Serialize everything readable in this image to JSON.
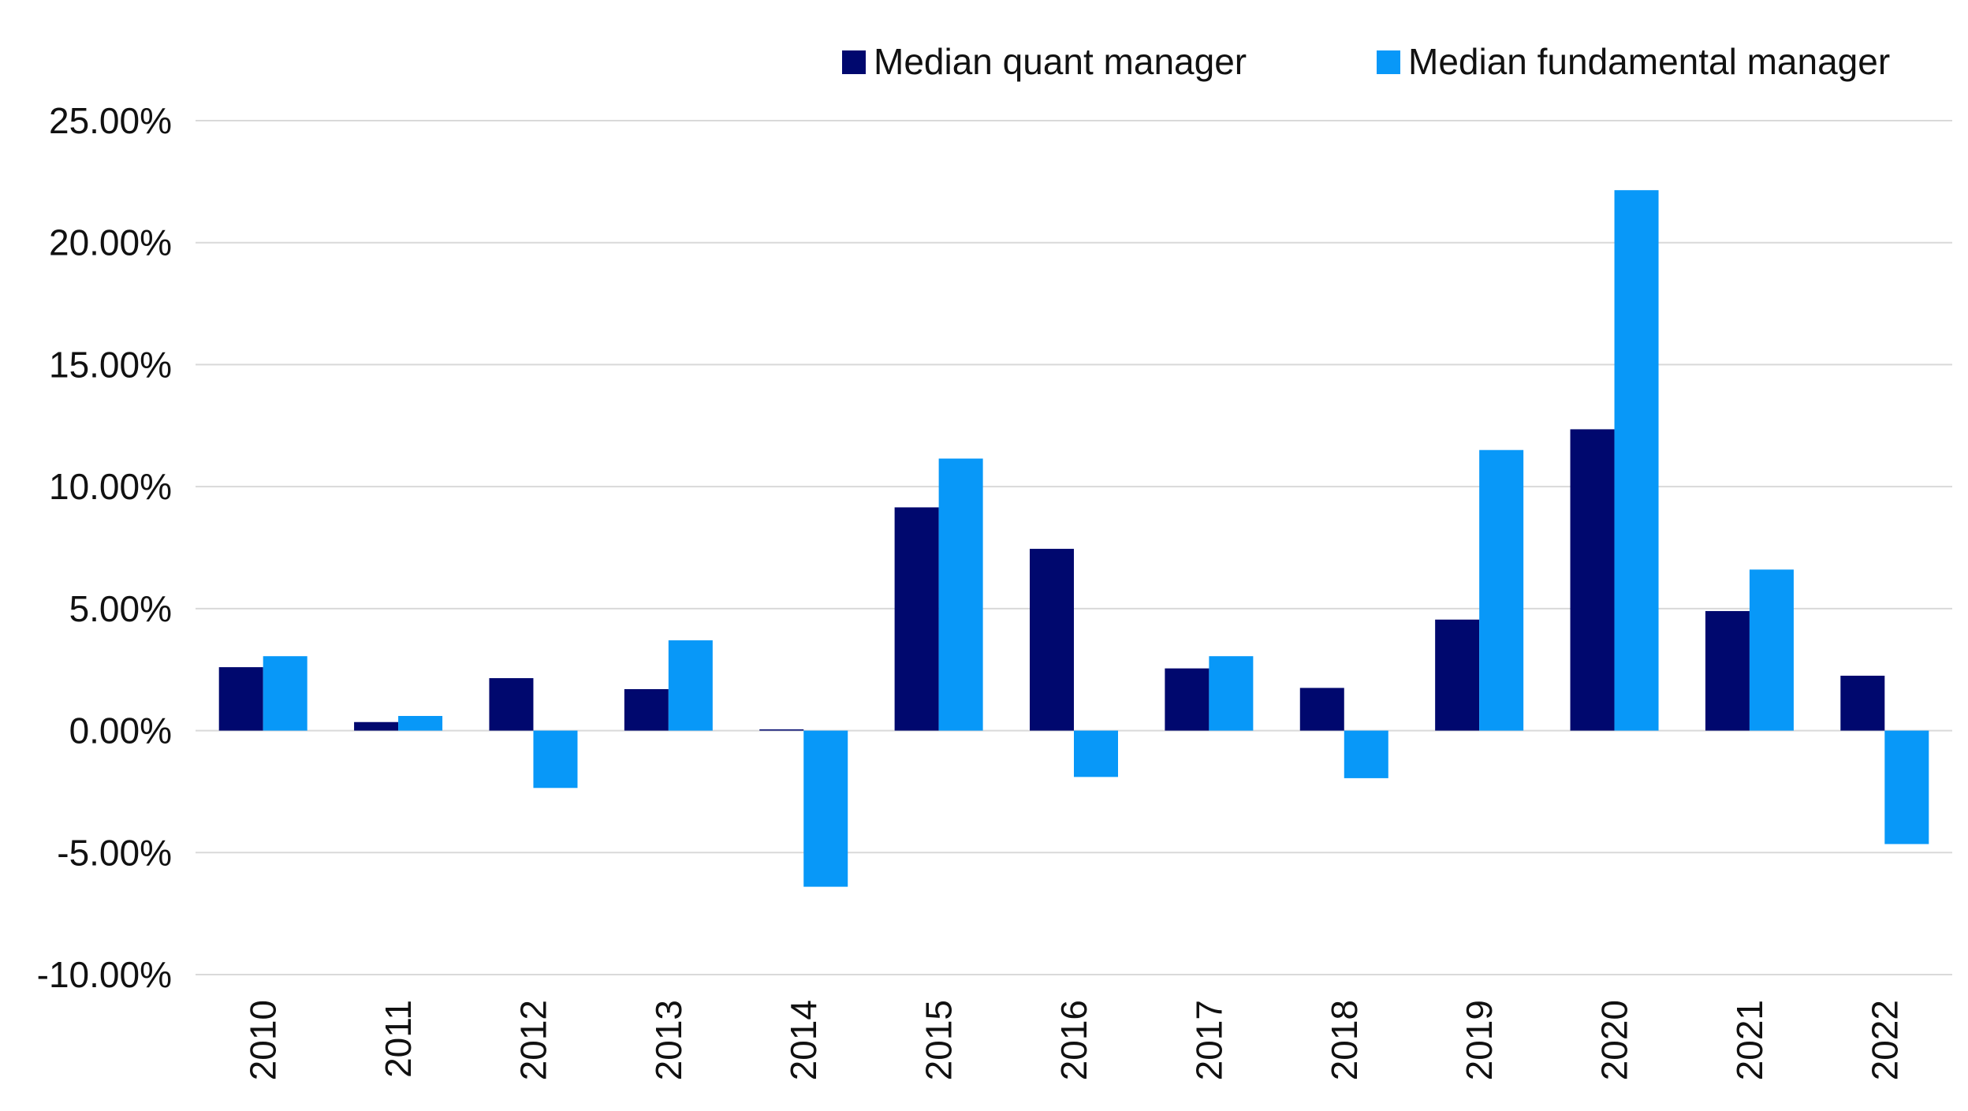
{
  "chart_data": {
    "type": "bar",
    "title": "",
    "xlabel": "",
    "ylabel": "",
    "categories": [
      "2010",
      "2011",
      "2012",
      "2013",
      "2014",
      "2015",
      "2016",
      "2017",
      "2018",
      "2019",
      "2020",
      "2021",
      "2022"
    ],
    "series": [
      {
        "name": "Median quant manager",
        "color": "#00086e",
        "values": [
          2.6,
          0.35,
          2.15,
          1.7,
          0.05,
          9.15,
          7.45,
          2.55,
          1.75,
          4.55,
          12.35,
          4.9,
          2.25
        ]
      },
      {
        "name": "Median fundamental manager",
        "color": "#0898f8",
        "values": [
          3.05,
          0.6,
          -2.35,
          3.7,
          -6.4,
          11.15,
          -1.9,
          3.05,
          -1.95,
          11.5,
          22.15,
          6.6,
          -4.65
        ]
      }
    ],
    "ylim": [
      -10,
      25
    ],
    "yticks": [
      25,
      20,
      15,
      10,
      5,
      0,
      -5,
      -10
    ],
    "ytick_labels": [
      "25.00%",
      "20.00%",
      "15.00%",
      "10.00%",
      "5.00%",
      "0.00%",
      "-5.00%",
      "-10.00%"
    ],
    "grid": true,
    "legend_position": "top-right"
  }
}
